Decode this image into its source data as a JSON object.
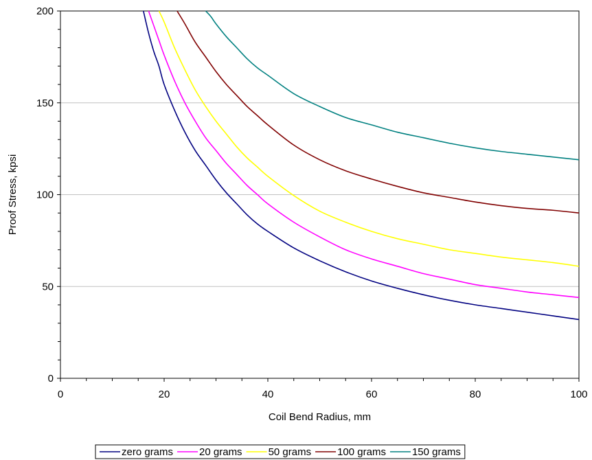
{
  "chart_data": {
    "type": "line",
    "title": "",
    "xlabel": "Coil Bend Radius, mm",
    "ylabel": "Proof Stress, kpsi",
    "xlim": [
      0,
      100
    ],
    "ylim": [
      0,
      200
    ],
    "x_ticks": [
      0,
      20,
      40,
      60,
      80,
      100
    ],
    "y_ticks": [
      0,
      50,
      100,
      150,
      200
    ],
    "x_tick_labels": [
      "0",
      "20",
      "40",
      "60",
      "80",
      "100"
    ],
    "y_tick_labels": [
      "0",
      "50",
      "100",
      "150",
      "200"
    ],
    "grid": "horizontal major gridlines",
    "legend_position": "bottom",
    "series": [
      {
        "name": "zero grams",
        "color": "#000080",
        "x": [
          16,
          17,
          18,
          19,
          20,
          22,
          24,
          26,
          28,
          30,
          32,
          34,
          36,
          38,
          40,
          45,
          50,
          55,
          60,
          65,
          70,
          75,
          80,
          85,
          90,
          95,
          100
        ],
        "y": [
          200,
          188,
          178,
          170,
          160,
          146,
          134,
          124,
          116,
          108,
          101,
          95,
          89,
          84,
          80,
          71,
          64,
          58,
          53,
          49,
          45.5,
          42.5,
          40,
          38,
          36,
          34,
          32
        ]
      },
      {
        "name": "20 grams",
        "color": "#FF00FF",
        "x": [
          17,
          18,
          19,
          20,
          22,
          24,
          26,
          28,
          30,
          32,
          34,
          36,
          38,
          40,
          45,
          50,
          55,
          60,
          65,
          70,
          75,
          80,
          85,
          90,
          95,
          100
        ],
        "y": [
          200,
          192,
          184,
          176,
          162,
          150,
          140,
          131,
          124,
          117,
          111,
          105,
          100,
          95,
          85,
          77,
          70,
          65,
          61,
          57,
          54,
          51,
          49,
          47,
          45.5,
          44
        ]
      },
      {
        "name": "50 grams",
        "color": "#FFFF00",
        "x": [
          19,
          20,
          22,
          24,
          26,
          28,
          30,
          32,
          34,
          36,
          38,
          40,
          45,
          50,
          55,
          60,
          65,
          70,
          75,
          80,
          85,
          90,
          95,
          100
        ],
        "y": [
          200,
          194,
          180,
          168,
          157,
          148,
          140,
          133,
          126,
          120,
          115,
          110,
          99.5,
          91,
          85,
          80,
          76,
          73,
          70,
          68,
          66,
          64.5,
          63,
          61
        ]
      },
      {
        "name": "100 grams",
        "color": "#800000",
        "x": [
          22.5,
          24,
          26,
          28,
          30,
          32,
          34,
          36,
          38,
          40,
          45,
          50,
          55,
          60,
          65,
          70,
          75,
          80,
          85,
          90,
          95,
          100
        ],
        "y": [
          200,
          193,
          183,
          175,
          167,
          160,
          154,
          148,
          143,
          138,
          127,
          119,
          113,
          108.5,
          104.5,
          101,
          98.5,
          96,
          94,
          92.5,
          91.5,
          90
        ]
      },
      {
        "name": "150 grams",
        "color": "#008080",
        "x": [
          28,
          29,
          30,
          32,
          34,
          36,
          38,
          40,
          45,
          50,
          55,
          60,
          65,
          70,
          75,
          80,
          85,
          90,
          95,
          100
        ],
        "y": [
          200,
          197,
          193,
          186,
          180,
          174,
          169,
          165,
          155,
          148,
          142,
          138,
          134,
          131,
          128,
          125.5,
          123.5,
          122,
          120.5,
          119
        ]
      }
    ]
  }
}
